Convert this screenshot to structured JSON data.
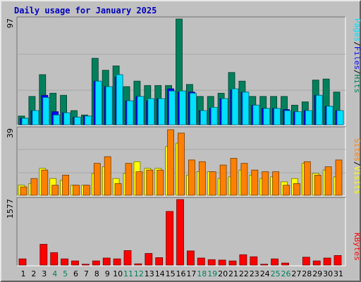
{
  "title": "Daily usage for January 2025",
  "colors": {
    "hits": "#00805c",
    "files": "#0000ff",
    "pages": "#00e0ff",
    "visits": "#ffff00",
    "sites": "#ff8000",
    "kbytes": "#ff0000",
    "weekend_day": "#00805c",
    "weekday": "#000000",
    "panel_bg": "#c0c0c0"
  },
  "panel_labels": {
    "top": [
      {
        "text": "Pages",
        "color": "#00e0ff"
      },
      {
        "text": "/",
        "color": "#000000"
      },
      {
        "text": "Files",
        "color": "#0000ff"
      },
      {
        "text": "/",
        "color": "#000000"
      },
      {
        "text": "Hits",
        "color": "#00805c"
      }
    ],
    "middle": [
      {
        "text": "Sites",
        "color": "#ff8000"
      },
      {
        "text": "/",
        "color": "#000000"
      },
      {
        "text": "Visits",
        "color": "#ffff00"
      }
    ],
    "bottom": [
      {
        "text": "KBytes",
        "color": "#ff0000"
      }
    ]
  },
  "chart_data": {
    "type": "bar",
    "title": "Daily usage for January 2025",
    "categories": [
      "1",
      "2",
      "3",
      "4",
      "5",
      "6",
      "7",
      "8",
      "9",
      "10",
      "11",
      "12",
      "13",
      "14",
      "15",
      "16",
      "17",
      "18",
      "19",
      "20",
      "21",
      "22",
      "23",
      "24",
      "25",
      "26",
      "27",
      "28",
      "29",
      "30",
      "31"
    ],
    "weekend_days": [
      "4",
      "5",
      "11",
      "12",
      "18",
      "19",
      "25",
      "26"
    ],
    "panels": [
      {
        "name": "top",
        "ymax_label": "97",
        "ymax": 97,
        "series": [
          {
            "name": "Hits",
            "values": [
              8,
              26,
              46,
              29,
              27,
              13,
              9,
              61,
              50,
              54,
              35,
              40,
              36,
              36,
              36,
              97,
              37,
              26,
              26,
              29,
              48,
              40,
              26,
              26,
              26,
              26,
              18,
              21,
              41,
              42,
              30
            ]
          },
          {
            "name": "Files",
            "values": [
              6,
              13,
              27,
              12,
              11,
              7,
              8,
              40,
              35,
              44,
              22,
              26,
              22,
              24,
              33,
              30,
              30,
              13,
              15,
              24,
              32,
              30,
              18,
              15,
              15,
              14,
              12,
              13,
              27,
              17,
              13
            ]
          },
          {
            "name": "Pages",
            "values": [
              6,
              13,
              25,
              9,
              11,
              7,
              8,
              40,
              35,
              46,
              22,
              26,
              24,
              24,
              31,
              31,
              29,
              13,
              16,
              24,
              33,
              30,
              18,
              15,
              15,
              13,
              12,
              13,
              27,
              17,
              13
            ]
          }
        ]
      },
      {
        "name": "middle",
        "ymax_label": "39",
        "ymax": 39,
        "series": [
          {
            "name": "Visits",
            "values": [
              6,
              7,
              16,
              10,
              9,
              6,
              6,
              13,
              17,
              10,
              13,
              20,
              16,
              16,
              29,
              31,
              12,
              14,
              14,
              10,
              11,
              15,
              12,
              10,
              11,
              8,
              10,
              19,
              13,
              15,
              11
            ]
          },
          {
            "name": "Sites",
            "values": [
              5,
              10,
              15,
              6,
              12,
              6,
              6,
              19,
              23,
              7,
              19,
              14,
              15,
              15,
              39,
              37,
              21,
              20,
              14,
              18,
              22,
              19,
              15,
              14,
              14,
              6,
              7,
              20,
              12,
              17,
              21
            ]
          }
        ]
      },
      {
        "name": "bottom",
        "ymax_label": "1577",
        "ymax": 1577,
        "series": [
          {
            "name": "KBytes",
            "values": [
              150,
              0,
              500,
              300,
              150,
              100,
              20,
              100,
              170,
              150,
              350,
              30,
              280,
              180,
              1290,
              1577,
              340,
              170,
              130,
              120,
              100,
              250,
              200,
              20,
              150,
              50,
              0,
              190,
              100,
              170,
              230
            ]
          }
        ]
      }
    ]
  }
}
